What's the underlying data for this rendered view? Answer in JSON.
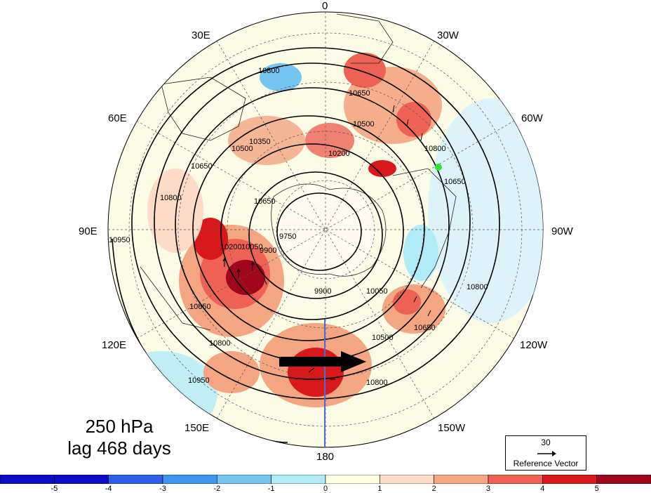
{
  "map": {
    "projection": "north-polar-stereographic",
    "longitude_labels": {
      "lon_0": "0",
      "lon_30e": "30E",
      "lon_60e": "60E",
      "lon_90e": "90E",
      "lon_120e": "120E",
      "lon_150e": "150E",
      "lon_180": "180",
      "lon_150w": "150W",
      "lon_120w": "120W",
      "lon_90w": "90W",
      "lon_60w": "60W",
      "lon_30w": "30W"
    },
    "contour_labels": {
      "c10800_a": "10800",
      "c10650_a": "10650",
      "c10500_a": "10500",
      "c10350_a": "10350",
      "c10200_a": "10200",
      "c10800_b": "10800",
      "c10650_b": "10650",
      "c10950_a": "10950",
      "c10800_c": "10800",
      "c10650_c": "10650",
      "c10500_b": "10500",
      "c10200_b": "10200",
      "c10050_a": "10050",
      "c9900_a": "9900",
      "c9750_a": "9750",
      "c9900_b": "9900",
      "c10050_b": "10050",
      "c10500_c": "10500",
      "c10650_d": "10650",
      "c10800_d": "10800",
      "c10800_e": "10800",
      "c10950_b": "10950",
      "c10650_e": "10650",
      "c10800_f": "10800",
      "c10650_f": "10650"
    },
    "colors": {
      "strong_positive": "#d7191c",
      "positive": "#f4a582",
      "weak_positive": "#fddbc7",
      "weak_negative": "#b2ebf8",
      "negative": "#74c5f0",
      "marker": "#2ee82e",
      "meridian_180_marker": "#4b6cd6"
    }
  },
  "title": {
    "line1": "250 hPa",
    "line2": "lag 468 days"
  },
  "reference_vector": {
    "magnitude": "30",
    "label": "Reference Vector"
  },
  "colorbar": {
    "ticks": [
      "-5",
      "-4",
      "-3",
      "-2",
      "-1",
      "0",
      "1",
      "2",
      "3",
      "4",
      "5"
    ],
    "colors": [
      "#0c0cc8",
      "#2f5ee8",
      "#3c96ec",
      "#74c5f0",
      "#b2ebf8",
      "#fffee0",
      "#fddbc7",
      "#f4a582",
      "#ee6155",
      "#d7191c",
      "#a0071c"
    ]
  }
}
